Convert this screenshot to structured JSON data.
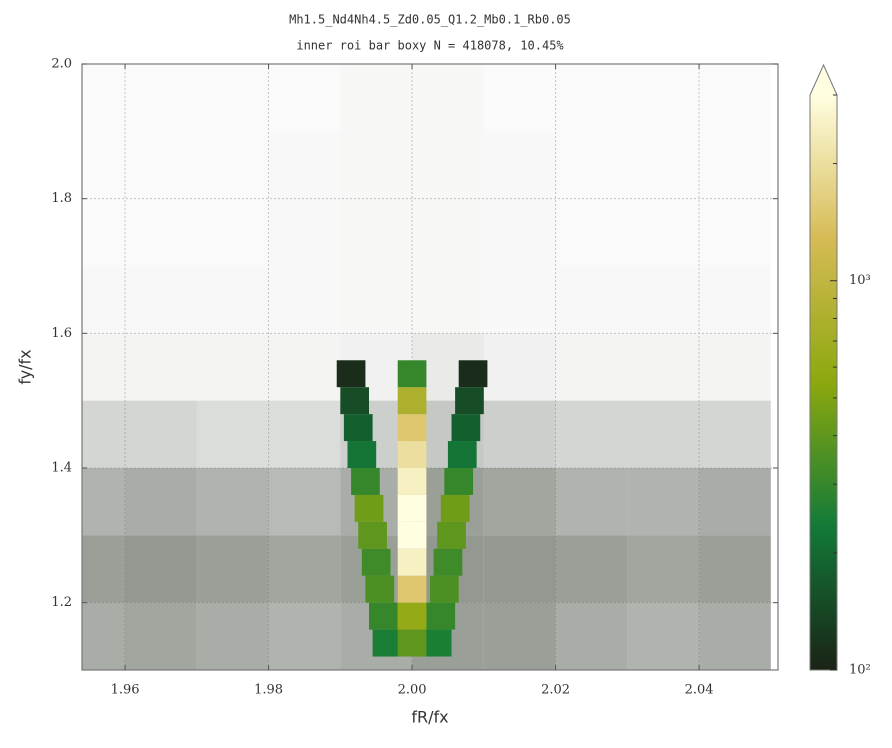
{
  "chart_data": {
    "type": "hexbin",
    "title": "Mh1.5_Nd4Nh4.5_Zd0.05_Q1.2_Mb0.1_Rb0.05",
    "subtitle": "inner roi bar boxy   N = 418078,   10.45%",
    "xlabel": "fR/fx",
    "ylabel": "fy/fx",
    "xlim": [
      1.954,
      2.051
    ],
    "ylim": [
      1.1,
      2.0
    ],
    "xticks": [
      1.96,
      1.98,
      {
        "value": 2.0,
        "label": "2.00"
      },
      2.02,
      2.04
    ],
    "yticks": [
      1.2,
      1.4,
      1.6,
      1.8,
      {
        "value": 2.0,
        "label": "2.0"
      }
    ],
    "grid": true,
    "background": {
      "color": "#6f766c",
      "x": [
        1.955,
        1.965,
        1.975,
        1.985,
        1.995,
        2.005,
        2.015,
        2.025,
        2.035,
        2.045
      ],
      "width": 0.01,
      "y": [
        1.15,
        1.25,
        1.35,
        1.45,
        1.55,
        1.65,
        1.75,
        1.85,
        1.95
      ],
      "height": 0.1,
      "counts": [
        [
          60,
          65,
          60,
          55,
          60,
          70,
          70,
          60,
          55,
          60
        ],
        [
          70,
          75,
          70,
          65,
          70,
          75,
          75,
          70,
          65,
          70
        ],
        [
          55,
          60,
          55,
          50,
          60,
          70,
          65,
          55,
          55,
          60
        ],
        [
          30,
          30,
          25,
          25,
          35,
          40,
          35,
          30,
          30,
          30
        ],
        [
          8,
          8,
          8,
          8,
          10,
          15,
          10,
          8,
          8,
          8
        ],
        [
          5,
          5,
          5,
          5,
          6,
          6,
          5,
          5,
          5,
          5
        ],
        [
          4,
          4,
          4,
          5,
          6,
          6,
          5,
          4,
          4,
          4
        ],
        [
          4,
          4,
          4,
          5,
          6,
          6,
          5,
          4,
          4,
          4
        ],
        [
          4,
          4,
          4,
          4,
          6,
          6,
          4,
          4,
          4,
          4
        ]
      ]
    },
    "cells": {
      "width": 0.004,
      "height": 0.04,
      "x": [
        1.9965,
        1.996,
        1.9955,
        1.995,
        1.9945,
        1.994,
        1.9935,
        1.993,
        1.9925,
        1.992,
        1.9915,
        2.0035,
        2.004,
        2.0045,
        2.005,
        2.0055,
        2.006,
        2.0065,
        2.007,
        2.0075,
        2.008,
        2.0085,
        2.0,
        2.0,
        2.0,
        2.0,
        2.0,
        2.0,
        2.0,
        2.0,
        2.0,
        2.0,
        2.0
      ],
      "y": [
        1.14,
        1.18,
        1.22,
        1.26,
        1.3,
        1.34,
        1.38,
        1.42,
        1.46,
        1.5,
        1.54,
        1.14,
        1.18,
        1.22,
        1.26,
        1.3,
        1.34,
        1.38,
        1.42,
        1.46,
        1.5,
        1.54,
        1.14,
        1.18,
        1.22,
        1.26,
        1.3,
        1.34,
        1.38,
        1.42,
        1.46,
        1.5,
        1.54
      ],
      "counts": [
        250,
        300,
        350,
        320,
        400,
        450,
        300,
        220,
        180,
        150,
        110,
        250,
        300,
        350,
        320,
        400,
        450,
        300,
        220,
        180,
        150,
        110,
        400,
        600,
        1500,
        2500,
        3000,
        3000,
        2500,
        2000,
        1500,
        800,
        300
      ]
    },
    "colormap": [
      "#1a2316",
      "#127a38",
      "#8ca80e",
      "#d6bb55",
      "#fffee0"
    ],
    "clim": [
      100,
      3000
    ],
    "log_color": true,
    "cticks": [
      {
        "value": 100,
        "label": "10²"
      },
      {
        "value": 1000,
        "label": "10³"
      }
    ],
    "cminor_ticks": [
      200,
      300,
      400,
      500,
      600,
      700,
      800,
      900,
      2000,
      3000
    ]
  }
}
